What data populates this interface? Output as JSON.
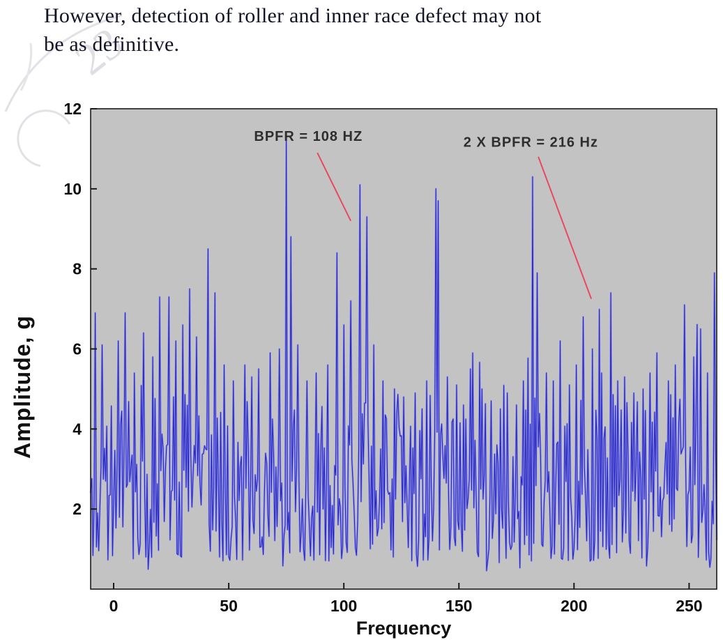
{
  "page": {
    "paragraph_line1": "However, detection of roller and inner race defect may not",
    "paragraph_line2": "be as definitive."
  },
  "watermark": {
    "text": "23"
  },
  "chart_data": {
    "type": "line",
    "title": "",
    "xlabel": "Frequency",
    "ylabel": "Amplitude, g",
    "xlim": [
      -10,
      262
    ],
    "ylim": [
      0,
      12
    ],
    "xticks": [
      0,
      50,
      100,
      150,
      200,
      250
    ],
    "yticks": [
      2,
      4,
      6,
      8,
      10,
      12
    ],
    "grid": false,
    "legend": "none",
    "plot_bg": "#c3c3c3",
    "line_color": "#2a2ac4",
    "line_color_light": "#9191e8",
    "annotation_color": "#e8495f",
    "noise": {
      "min": 0.7,
      "max": 4.9,
      "seed": 11,
      "points_per_hz": 2
    },
    "peaks": [
      {
        "x": -8,
        "y": 6.9
      },
      {
        "x": -5,
        "y": 6.1
      },
      {
        "x": 2,
        "y": 6.2
      },
      {
        "x": 5,
        "y": 6.9
      },
      {
        "x": 9,
        "y": 5.4
      },
      {
        "x": 13,
        "y": 6.4
      },
      {
        "x": 17,
        "y": 5.8
      },
      {
        "x": 20,
        "y": 7.3
      },
      {
        "x": 24,
        "y": 7.3
      },
      {
        "x": 27,
        "y": 6.2
      },
      {
        "x": 30,
        "y": 6.6
      },
      {
        "x": 33,
        "y": 7.5
      },
      {
        "x": 36,
        "y": 6.3
      },
      {
        "x": 41,
        "y": 8.5
      },
      {
        "x": 44,
        "y": 7.4
      },
      {
        "x": 48,
        "y": 5.6
      },
      {
        "x": 52,
        "y": 5.2
      },
      {
        "x": 57,
        "y": 5.6
      },
      {
        "x": 60,
        "y": 5.3
      },
      {
        "x": 63,
        "y": 5.5
      },
      {
        "x": 68,
        "y": 5.9
      },
      {
        "x": 72,
        "y": 6.0
      },
      {
        "x": 75,
        "y": 11.2
      },
      {
        "x": 77,
        "y": 8.8
      },
      {
        "x": 80,
        "y": 6.1
      },
      {
        "x": 84,
        "y": 5.2
      },
      {
        "x": 88,
        "y": 5.4
      },
      {
        "x": 93,
        "y": 5.6
      },
      {
        "x": 97,
        "y": 8.4
      },
      {
        "x": 100,
        "y": 6.6
      },
      {
        "x": 103,
        "y": 7.2
      },
      {
        "x": 107,
        "y": 10.1
      },
      {
        "x": 110,
        "y": 9.3
      },
      {
        "x": 113,
        "y": 6.1
      },
      {
        "x": 117,
        "y": 5.2
      },
      {
        "x": 122,
        "y": 5.0
      },
      {
        "x": 126,
        "y": 4.8
      },
      {
        "x": 131,
        "y": 4.9
      },
      {
        "x": 136,
        "y": 5.2
      },
      {
        "x": 140,
        "y": 10.0
      },
      {
        "x": 141,
        "y": 9.7
      },
      {
        "x": 145,
        "y": 5.3
      },
      {
        "x": 149,
        "y": 5.1
      },
      {
        "x": 152,
        "y": 4.6
      },
      {
        "x": 155,
        "y": 5.5
      },
      {
        "x": 160,
        "y": 5.0
      },
      {
        "x": 164,
        "y": 4.7
      },
      {
        "x": 168,
        "y": 4.5
      },
      {
        "x": 171,
        "y": 4.9
      },
      {
        "x": 175,
        "y": 4.6
      },
      {
        "x": 178,
        "y": 5.2
      },
      {
        "x": 182,
        "y": 10.3
      },
      {
        "x": 184,
        "y": 7.9
      },
      {
        "x": 188,
        "y": 5.4
      },
      {
        "x": 191,
        "y": 5.2
      },
      {
        "x": 194,
        "y": 6.2
      },
      {
        "x": 198,
        "y": 5.1
      },
      {
        "x": 201,
        "y": 5.6
      },
      {
        "x": 204,
        "y": 6.8
      },
      {
        "x": 208,
        "y": 6.0
      },
      {
        "x": 212,
        "y": 5.4
      },
      {
        "x": 216,
        "y": 7.4
      },
      {
        "x": 219,
        "y": 5.2
      },
      {
        "x": 222,
        "y": 5.3
      },
      {
        "x": 226,
        "y": 4.9
      },
      {
        "x": 230,
        "y": 5.0
      },
      {
        "x": 233,
        "y": 5.4
      },
      {
        "x": 236,
        "y": 5.9
      },
      {
        "x": 241,
        "y": 5.2
      },
      {
        "x": 244,
        "y": 5.6
      },
      {
        "x": 248,
        "y": 7.1
      },
      {
        "x": 252,
        "y": 5.8
      },
      {
        "x": 255,
        "y": 6.5
      },
      {
        "x": 258,
        "y": 5.4
      },
      {
        "x": 261,
        "y": 7.9
      }
    ],
    "annotations": [
      {
        "text": "BPFR  = 108 HZ",
        "tx": 61,
        "ty": 11.2,
        "line": [
          88.5,
          10.9,
          103,
          9.2
        ]
      },
      {
        "text": "2 X BPFR = 216 Hz",
        "tx": 152,
        "ty": 11.05,
        "line": [
          184.5,
          10.8,
          207.5,
          7.25
        ]
      }
    ]
  }
}
